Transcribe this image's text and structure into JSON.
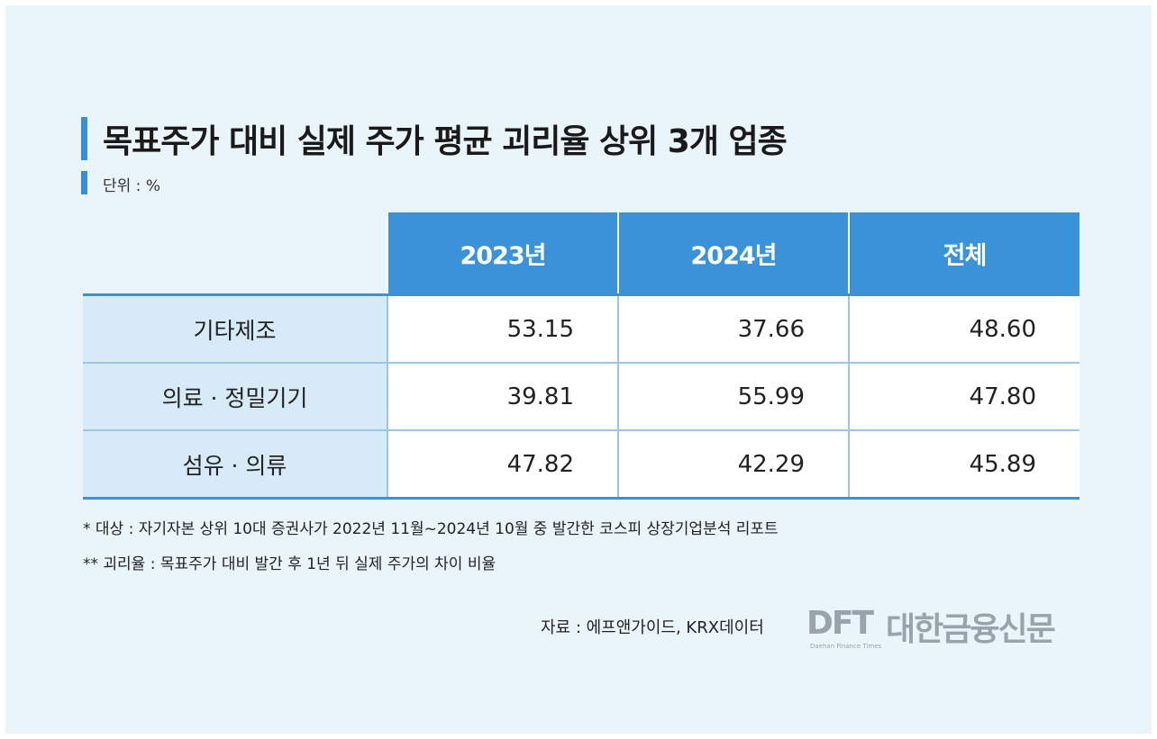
{
  "title": "목표주가 대비 실제 주가 평균 괴리율 상위 3개 업종",
  "unit": "단위 : %",
  "chart_data": {
    "type": "table",
    "title": "목표주가 대비 실제 주가 평균 괴리율 상위 3개 업종",
    "columns": [
      "2023년",
      "2024년",
      "전체"
    ],
    "rows": [
      {
        "category": "기타제조",
        "values": [
          "53.15",
          "37.66",
          "48.60"
        ]
      },
      {
        "category": "의료 · 정밀기기",
        "values": [
          "39.81",
          "55.99",
          "47.80"
        ]
      },
      {
        "category": "섬유 · 의류",
        "values": [
          "47.82",
          "42.29",
          "45.89"
        ]
      }
    ]
  },
  "notes": [
    "* 대상 : 자기자본 상위 10대 증권사가 2022년 11월~2024년 10월 중 발간한 코스피 상장기업분석 리포트",
    "** 괴리율 : 목표주가 대비 발간 후 1년 뒤 실제 주가의 차이 비율"
  ],
  "source": "자료 : 에프앤가이드, KRX데이터",
  "logo": {
    "mark": "DFT",
    "name": "대한금융신문",
    "sub": "Daehan Finance Times"
  },
  "colors": {
    "accent": "#3a93d8",
    "category_bg": "#d6eaf8",
    "background": "#eaf4fb"
  }
}
